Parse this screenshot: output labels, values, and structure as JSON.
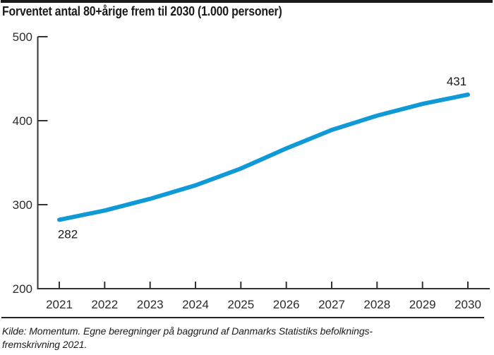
{
  "header": {
    "title": "Forventet antal 80+årige frem til 2030 (1.000 personer)"
  },
  "chart_data": {
    "type": "line",
    "title": "Forventet antal 80+årige frem til 2030 (1.000 personer)",
    "x": [
      2021,
      2022,
      2023,
      2024,
      2025,
      2026,
      2027,
      2028,
      2029,
      2030
    ],
    "series": [
      {
        "name": "Forventet antal 80+årige (1.000 personer)",
        "values": [
          282,
          293,
          307,
          323,
          343,
          367,
          389,
          406,
          420,
          431
        ]
      }
    ],
    "ylim": [
      200,
      500
    ],
    "yticks": [
      200,
      300,
      400,
      500
    ],
    "xlabel": "",
    "ylabel": "",
    "grid": false,
    "legend": false,
    "annotations": [
      {
        "x": 2021,
        "value": 282,
        "label": "282",
        "position": "below"
      },
      {
        "x": 2030,
        "value": 431,
        "label": "431",
        "position": "above"
      }
    ]
  },
  "theme": {
    "line_color": "#0f9ad7",
    "axis_color": "#333333",
    "accent_bar_color": "#1a1a1a",
    "divider_color": "#222222",
    "text_color": "#1a1a1a"
  },
  "footer": {
    "source_line1": "Kilde: Momentum. Egne beregninger på baggrund af Danmarks Statistiks befolknings-",
    "source_line2": "fremskrivning 2021."
  }
}
